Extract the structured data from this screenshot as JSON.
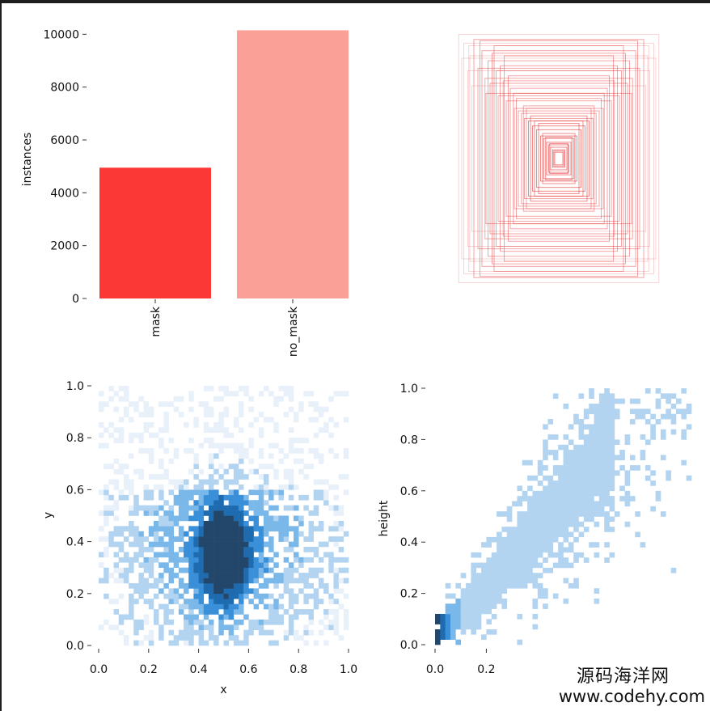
{
  "chart_data": [
    {
      "type": "bar",
      "categories": [
        "mask",
        "no_mask"
      ],
      "values": [
        4950,
        10150
      ],
      "colors": [
        "#fc3836",
        "#fba096"
      ],
      "ylabel": "instances",
      "ylim": [
        0,
        10500
      ],
      "yticks": [
        0,
        2000,
        4000,
        6000,
        8000,
        10000
      ],
      "ytick_labels": [
        "0",
        "2000",
        "4000",
        "6000",
        "8000",
        "10000"
      ],
      "grid": false
    },
    {
      "type": "box-overlay",
      "box_color": "#e8383a",
      "boxes": [
        [
          0.99,
          0.99
        ],
        [
          0.94,
          0.92
        ],
        [
          0.89,
          0.9
        ],
        [
          0.88,
          0.82
        ],
        [
          0.84,
          0.95
        ],
        [
          0.8,
          0.72
        ],
        [
          0.76,
          0.86
        ],
        [
          0.73,
          0.64
        ],
        [
          0.7,
          0.78
        ],
        [
          0.68,
          0.6
        ],
        [
          0.62,
          0.7
        ],
        [
          0.6,
          0.5
        ],
        [
          0.55,
          0.62
        ],
        [
          0.52,
          0.46
        ],
        [
          0.48,
          0.56
        ],
        [
          0.44,
          0.4
        ],
        [
          0.4,
          0.38
        ],
        [
          0.37,
          0.36
        ],
        [
          0.34,
          0.32
        ],
        [
          0.3,
          0.3
        ],
        [
          0.26,
          0.26
        ],
        [
          0.22,
          0.23
        ],
        [
          0.18,
          0.18
        ],
        [
          0.15,
          0.16
        ],
        [
          0.12,
          0.13
        ],
        [
          0.1,
          0.11
        ],
        [
          0.08,
          0.09
        ],
        [
          0.06,
          0.07
        ],
        [
          0.05,
          0.06
        ],
        [
          0.04,
          0.05
        ],
        [
          0.66,
          0.84
        ],
        [
          0.58,
          0.74
        ],
        [
          0.9,
          0.7
        ],
        [
          0.72,
          0.52
        ],
        [
          0.5,
          0.66
        ],
        [
          0.86,
          0.58
        ],
        [
          0.45,
          0.52
        ],
        [
          0.35,
          0.42
        ],
        [
          0.28,
          0.34
        ],
        [
          0.2,
          0.28
        ],
        [
          0.78,
          0.94
        ],
        [
          0.64,
          0.9
        ],
        [
          0.96,
          0.8
        ],
        [
          0.54,
          0.82
        ],
        [
          0.42,
          0.48
        ],
        [
          0.32,
          0.4
        ],
        [
          0.24,
          0.3
        ],
        [
          0.16,
          0.2
        ],
        [
          0.13,
          0.17
        ],
        [
          0.09,
          0.12
        ]
      ]
    },
    {
      "type": "heatmap",
      "subtype": "2d-histogram",
      "xlabel": "x",
      "ylabel": "y",
      "xlim": [
        0,
        1
      ],
      "ylim": [
        0,
        1
      ],
      "ticks": [
        0.0,
        0.2,
        0.4,
        0.6,
        0.8,
        1.0
      ],
      "tick_labels": [
        "0.0",
        "0.2",
        "0.4",
        "0.6",
        "0.8",
        "1.0"
      ],
      "bins": 50,
      "peak": [
        0.5,
        0.35
      ],
      "colormap": [
        "#e8f0f9",
        "#b3d4f0",
        "#7bb8ea",
        "#3a8fd9",
        "#1f6bb0",
        "#23476a"
      ]
    },
    {
      "type": "heatmap",
      "subtype": "2d-histogram",
      "xlabel": "",
      "ylabel": "height",
      "xlim": [
        0,
        1
      ],
      "ylim": [
        0,
        1
      ],
      "xticks": [
        0.0,
        0.2
      ],
      "xtick_labels": [
        "0.0",
        "0.2"
      ],
      "yticks": [
        0.0,
        0.2,
        0.4,
        0.6,
        0.8,
        1.0
      ],
      "ytick_labels": [
        "0.0",
        "0.2",
        "0.4",
        "0.6",
        "0.8",
        "1.0"
      ],
      "bins": 50,
      "relation": "height ≈ 1.1 × width",
      "colormap": [
        "#dbe8f5",
        "#b3d4f0",
        "#7bb8ea",
        "#3a8fd9",
        "#1f6bb0",
        "#23476a"
      ]
    }
  ],
  "watermark": {
    "line1": "源码海洋网",
    "line2": "www.codehy.com"
  }
}
